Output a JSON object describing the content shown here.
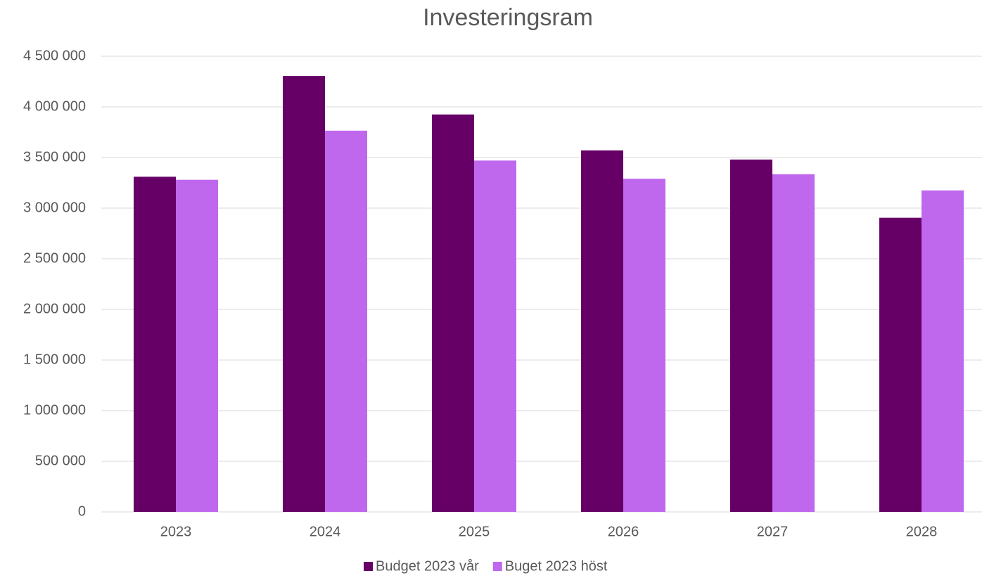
{
  "chart_data": {
    "type": "bar",
    "title": "Investeringsram",
    "categories": [
      "2023",
      "2024",
      "2025",
      "2026",
      "2027",
      "2028"
    ],
    "series": [
      {
        "name": "Budget 2023 vår",
        "color": "#660066",
        "values": [
          3310000,
          4305000,
          3925000,
          3570000,
          3480000,
          2905000
        ]
      },
      {
        "name": "Buget 2023 höst",
        "color": "#bf68ee",
        "values": [
          3280000,
          3765000,
          3470000,
          3290000,
          3335000,
          3175000
        ]
      }
    ],
    "ylim": [
      0,
      4500000
    ],
    "yticks": [
      0,
      {
        "value": 500000,
        "label": "500 000"
      },
      {
        "value": 1000000,
        "label": "1 000 000"
      },
      {
        "value": 1500000,
        "label": "1 500 000"
      },
      {
        "value": 2000000,
        "label": "2 000 000"
      },
      {
        "value": 2500000,
        "label": "2 500 000"
      },
      {
        "value": 3000000,
        "label": "3 000 000"
      },
      {
        "value": 3500000,
        "label": "3 500 000"
      },
      {
        "value": 4000000,
        "label": "4 000 000"
      },
      {
        "value": 4500000,
        "label": "4 500 000"
      }
    ],
    "grid": true,
    "legend": "bottom"
  }
}
